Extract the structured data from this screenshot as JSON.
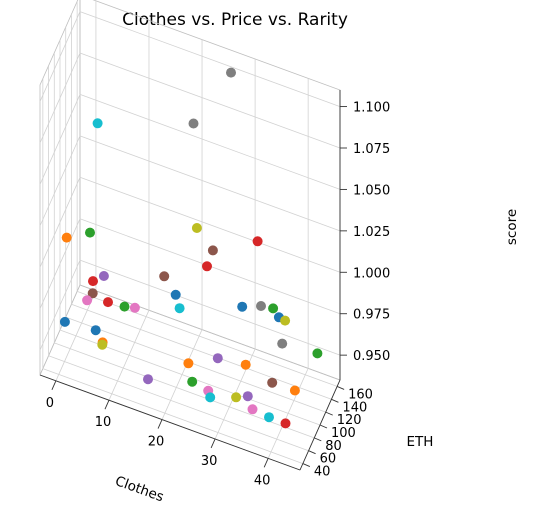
{
  "chart_data": {
    "type": "scatter",
    "projection": "3d",
    "title": "Clothes vs. Price vs. Rarity",
    "xlabel": "Clothes",
    "ylabel": "ETH",
    "zlabel": "score",
    "grid": true,
    "xlim": [
      -3,
      46
    ],
    "ylim": [
      30,
      170
    ],
    "zlim": [
      0.935,
      1.11
    ],
    "xticks": [
      "0",
      "10",
      "20",
      "30",
      "40"
    ],
    "yticks": [
      "40",
      "60",
      "80",
      "100",
      "120",
      "140",
      "160"
    ],
    "zticks": [
      "0.950",
      "0.975",
      "1.000",
      "1.025",
      "1.050",
      "1.075",
      "1.100"
    ],
    "palette": [
      "#1f77b4",
      "#ff7f0e",
      "#2ca02c",
      "#d62728",
      "#9467bd",
      "#8c564b",
      "#e377c2",
      "#7f7f7f",
      "#bcbd22",
      "#17becf"
    ],
    "points": [
      {
        "x": 26,
        "y": 160,
        "z": 1.101,
        "color": "#7f7f7f"
      },
      {
        "x": 20,
        "y": 140,
        "z": 1.071,
        "color": "#7f7f7f"
      },
      {
        "x": 3,
        "y": 120,
        "z": 1.059,
        "color": "#17becf"
      },
      {
        "x": 22,
        "y": 115,
        "z": 1.02,
        "color": "#bcbd22"
      },
      {
        "x": 25,
        "y": 115,
        "z": 1.01,
        "color": "#8c564b"
      },
      {
        "x": 24,
        "y": 113,
        "z": 1.0,
        "color": "#d62728"
      },
      {
        "x": 31,
        "y": 160,
        "z": 1.005,
        "color": "#d62728"
      },
      {
        "x": -2,
        "y": 105,
        "z": 0.99,
        "color": "#ff7f0e"
      },
      {
        "x": 2,
        "y": 112,
        "z": 0.995,
        "color": "#2ca02c"
      },
      {
        "x": 5,
        "y": 105,
        "z": 0.975,
        "color": "#9467bd"
      },
      {
        "x": 3,
        "y": 104,
        "z": 0.97,
        "color": "#d62728"
      },
      {
        "x": 3,
        "y": 103,
        "z": 0.963,
        "color": "#8c564b"
      },
      {
        "x": 2,
        "y": 102,
        "z": 0.958,
        "color": "#e377c2"
      },
      {
        "x": 6,
        "y": 101,
        "z": 0.962,
        "color": "#d62728"
      },
      {
        "x": 9,
        "y": 103,
        "z": 0.962,
        "color": "#2ca02c"
      },
      {
        "x": 11,
        "y": 102,
        "z": 0.964,
        "color": "#e377c2"
      },
      {
        "x": 16,
        "y": 112,
        "z": 0.985,
        "color": "#8c564b"
      },
      {
        "x": 18,
        "y": 115,
        "z": 0.975,
        "color": "#1f77b4"
      },
      {
        "x": 19,
        "y": 110,
        "z": 0.97,
        "color": "#17becf"
      },
      {
        "x": 4,
        "y": 95,
        "z": 0.945,
        "color": "#1f77b4"
      },
      {
        "x": -1,
        "y": 80,
        "z": 0.95,
        "color": "#1f77b4"
      },
      {
        "x": 6,
        "y": 82,
        "z": 0.945,
        "color": "#ff7f0e"
      },
      {
        "x": 6,
        "y": 81,
        "z": 0.944,
        "color": "#bcbd22"
      },
      {
        "x": 30,
        "y": 125,
        "z": 0.978,
        "color": "#1f77b4"
      },
      {
        "x": 33,
        "y": 135,
        "z": 0.978,
        "color": "#7f7f7f"
      },
      {
        "x": 35,
        "y": 140,
        "z": 0.977,
        "color": "#2ca02c"
      },
      {
        "x": 36,
        "y": 142,
        "z": 0.972,
        "color": "#1f77b4"
      },
      {
        "x": 37,
        "y": 145,
        "z": 0.97,
        "color": "#bcbd22"
      },
      {
        "x": 37,
        "y": 135,
        "z": 0.96,
        "color": "#7f7f7f"
      },
      {
        "x": 22,
        "y": 85,
        "z": 0.95,
        "color": "#ff7f0e"
      },
      {
        "x": 27,
        "y": 95,
        "z": 0.955,
        "color": "#9467bd"
      },
      {
        "x": 32,
        "y": 100,
        "z": 0.955,
        "color": "#ff7f0e"
      },
      {
        "x": 23,
        "y": 80,
        "z": 0.942,
        "color": "#2ca02c"
      },
      {
        "x": 26,
        "y": 80,
        "z": 0.94,
        "color": "#e377c2"
      },
      {
        "x": 31,
        "y": 85,
        "z": 0.94,
        "color": "#bcbd22"
      },
      {
        "x": 37,
        "y": 100,
        "z": 0.95,
        "color": "#8c564b"
      },
      {
        "x": 41,
        "y": 105,
        "z": 0.948,
        "color": "#ff7f0e"
      },
      {
        "x": 44,
        "y": 128,
        "z": 0.965,
        "color": "#2ca02c"
      },
      {
        "x": 16,
        "y": 55,
        "z": 0.945,
        "color": "#9467bd"
      },
      {
        "x": 34,
        "y": 70,
        "z": 0.95,
        "color": "#9467bd"
      },
      {
        "x": 35,
        "y": 68,
        "z": 0.944,
        "color": "#e377c2"
      },
      {
        "x": 38,
        "y": 70,
        "z": 0.942,
        "color": "#17becf"
      },
      {
        "x": 41,
        "y": 72,
        "z": 0.941,
        "color": "#d62728"
      },
      {
        "x": 28,
        "y": 50,
        "z": 0.95,
        "color": "#17becf"
      }
    ]
  }
}
